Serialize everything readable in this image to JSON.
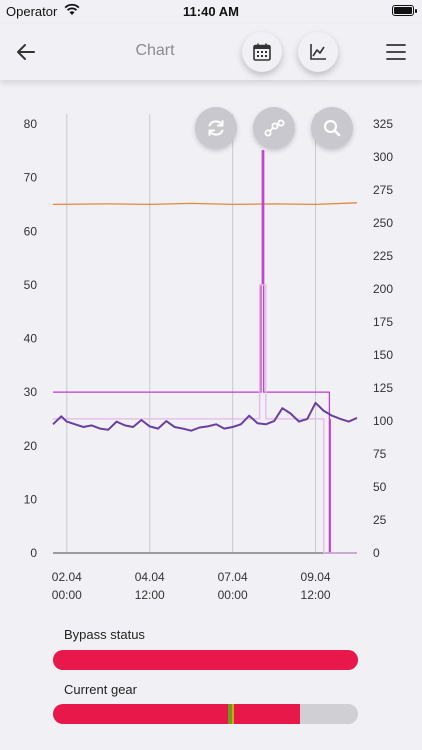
{
  "status_bar": {
    "carrier": "Operator",
    "time": "11:40 AM"
  },
  "nav": {
    "title": "Chart"
  },
  "chart_data": {
    "type": "line",
    "x_tick_labels": [
      [
        "02.04",
        "00:00"
      ],
      [
        "04.04",
        "12:00"
      ],
      [
        "07.04",
        "00:00"
      ],
      [
        "09.04",
        "12:00"
      ]
    ],
    "y_left": {
      "ticks": [
        0,
        10,
        20,
        30,
        40,
        50,
        60,
        70,
        80
      ],
      "ylim": [
        0,
        80
      ]
    },
    "y_right": {
      "ticks": [
        0,
        25,
        50,
        75,
        100,
        125,
        150,
        175,
        200,
        225,
        250,
        275,
        300,
        325
      ],
      "ylim": [
        0,
        325
      ]
    },
    "x_range_hours": [
      -10,
      210
    ],
    "grid": "vertical",
    "series": [
      {
        "color": "#e3893a",
        "axis": "left",
        "x": [
          -10,
          30,
          60,
          90,
          120,
          150,
          180,
          210
        ],
        "y": [
          65,
          65.1,
          65,
          65.2,
          65,
          65.1,
          65,
          65.3
        ]
      },
      {
        "color": "#c03cd0",
        "axis": "left",
        "x": [
          -10,
          140.5,
          140.5,
          141.5,
          141.5,
          142.5,
          142.5,
          190,
          190,
          190.6,
          190.6
        ],
        "y": [
          30,
          30,
          50,
          50,
          75,
          75,
          30,
          30,
          0,
          0,
          25
        ]
      },
      {
        "color": "#e8b8ec",
        "axis": "left",
        "x": [
          -10,
          139.5,
          139.5,
          144,
          144,
          186,
          186,
          210
        ],
        "y": [
          25,
          25,
          50,
          50,
          25,
          25,
          0,
          0
        ]
      },
      {
        "color": "#6b3fa0",
        "axis": "left",
        "x": [
          -10,
          -4,
          0,
          6,
          12,
          18,
          24,
          30,
          36,
          42,
          48,
          54,
          60,
          66,
          72,
          78,
          84,
          90,
          96,
          102,
          108,
          114,
          120,
          126,
          132,
          138,
          144,
          150,
          156,
          162,
          168,
          174,
          180,
          186,
          192,
          198,
          204,
          210
        ],
        "y": [
          24,
          25.5,
          24.5,
          24,
          23.5,
          23.8,
          23.2,
          23,
          24.5,
          23.8,
          23.5,
          24.8,
          23.6,
          23.2,
          24.6,
          23.5,
          23.2,
          22.8,
          23.4,
          23.6,
          24,
          23.2,
          23.5,
          24,
          25.6,
          24.2,
          24,
          24.6,
          27,
          26,
          24.5,
          25,
          28,
          26.5,
          25.6,
          25,
          24.5,
          25.2
        ]
      }
    ]
  },
  "chart_buttons": {
    "refresh": "refresh-icon",
    "connect": "nodes-icon",
    "zoom": "zoom-icon"
  },
  "bypass": {
    "label": "Bypass status",
    "fill_fraction": 1.0,
    "color": "#e8194a"
  },
  "gear": {
    "label": "Current gear",
    "fill_fraction": 0.81,
    "marker_fraction": 0.575,
    "colors": {
      "fill": "#e8194a",
      "track": "#cfcfd4",
      "marker": "#6f9a1c"
    }
  }
}
